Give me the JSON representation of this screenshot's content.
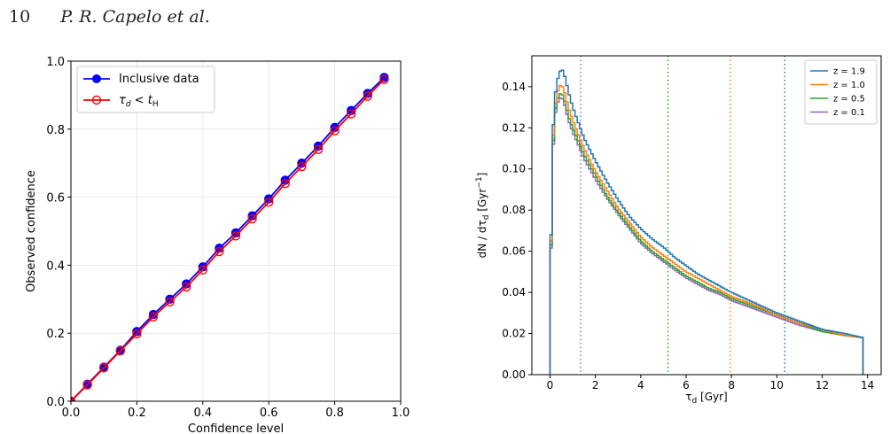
{
  "header": {
    "page_number": "10",
    "authors": "P. R. Capelo et al."
  },
  "chart_data": [
    {
      "type": "line",
      "xlabel": "Confidence level",
      "ylabel": "Observed confidence",
      "xlim": [
        0,
        1.0
      ],
      "ylim": [
        0,
        1.0
      ],
      "grid": true,
      "legend_placement": "top-left",
      "x_ticks": [
        "0.0",
        "0.2",
        "0.4",
        "0.6",
        "0.8",
        "1.0"
      ],
      "y_ticks": [
        "0.0",
        "0.2",
        "0.4",
        "0.6",
        "0.8",
        "1.0"
      ],
      "x": [
        0,
        0.05,
        0.1,
        0.15,
        0.2,
        0.25,
        0.3,
        0.35,
        0.4,
        0.45,
        0.5,
        0.55,
        0.6,
        0.65,
        0.7,
        0.75,
        0.8,
        0.85,
        0.9,
        0.95
      ],
      "series": [
        {
          "name": "Inclusive data",
          "color": "#0000ff",
          "marker": "filled-circle",
          "values": [
            0,
            0.05,
            0.1,
            0.15,
            0.205,
            0.255,
            0.3,
            0.345,
            0.395,
            0.45,
            0.495,
            0.545,
            0.595,
            0.65,
            0.7,
            0.75,
            0.805,
            0.855,
            0.905,
            0.952
          ]
        },
        {
          "name": "τd < tH",
          "name_parts": {
            "a": "τ",
            "a_sub": "d",
            "op": " < ",
            "b": "t",
            "b_sub": "H"
          },
          "color": "#ff0000",
          "marker": "open-circle",
          "values": [
            0,
            0.048,
            0.098,
            0.148,
            0.198,
            0.248,
            0.292,
            0.336,
            0.386,
            0.44,
            0.486,
            0.536,
            0.585,
            0.64,
            0.69,
            0.74,
            0.795,
            0.845,
            0.897,
            0.946
          ]
        }
      ]
    },
    {
      "type": "line",
      "xlabel": "τd [Gyr]",
      "xlabel_parts": {
        "sym": "τ",
        "sub": "d",
        "unit": " [Gyr]"
      },
      "ylabel": "dN / dτd [Gyr−1]",
      "ylabel_parts": {
        "pre": "dN / dτ",
        "sub": "d",
        "unit": " [Gyr",
        "sup": "−1",
        "close": "]"
      },
      "xlim": [
        -0.8,
        14.6
      ],
      "ylim": [
        0,
        0.155
      ],
      "grid": false,
      "legend_placement": "top-right",
      "x_ticks": [
        0,
        2,
        4,
        6,
        8,
        10,
        12,
        14
      ],
      "y_ticks": [
        "0.00",
        "0.02",
        "0.04",
        "0.06",
        "0.08",
        "0.10",
        "0.12",
        "0.14"
      ],
      "x": [
        0,
        0.1,
        0.2,
        0.3,
        0.4,
        0.5,
        0.6,
        0.7,
        0.8,
        1.0,
        1.2,
        1.5,
        2,
        2.5,
        3,
        3.5,
        4,
        4.5,
        5,
        5.5,
        6,
        6.5,
        7,
        7.5,
        8,
        9,
        10,
        11,
        12,
        13,
        13.8
      ],
      "series": [
        {
          "name": "z = 1.9",
          "color": "#1f77b4",
          "tau_H": 10.35,
          "values": [
            0.026,
            0.11,
            0.133,
            0.142,
            0.146,
            0.149,
            0.147,
            0.143,
            0.138,
            0.13,
            0.124,
            0.115,
            0.104,
            0.094,
            0.085,
            0.077,
            0.071,
            0.066,
            0.062,
            0.057,
            0.053,
            0.049,
            0.046,
            0.043,
            0.04,
            0.035,
            0.03,
            0.026,
            0.022,
            0.02,
            0.018
          ]
        },
        {
          "name": "z = 1.0",
          "color": "#ff7f0e",
          "tau_H": 7.95,
          "values": [
            0.025,
            0.105,
            0.128,
            0.136,
            0.14,
            0.141,
            0.139,
            0.135,
            0.13,
            0.124,
            0.118,
            0.11,
            0.099,
            0.09,
            0.081,
            0.074,
            0.067,
            0.062,
            0.058,
            0.054,
            0.05,
            0.047,
            0.044,
            0.041,
            0.038,
            0.034,
            0.029,
            0.025,
            0.022,
            0.019,
            0.018
          ]
        },
        {
          "name": "z = 0.5",
          "color": "#2ca02c",
          "tau_H": 5.2,
          "values": [
            0.024,
            0.102,
            0.126,
            0.133,
            0.136,
            0.137,
            0.135,
            0.131,
            0.126,
            0.12,
            0.115,
            0.107,
            0.097,
            0.087,
            0.079,
            0.072,
            0.065,
            0.06,
            0.056,
            0.052,
            0.048,
            0.045,
            0.042,
            0.04,
            0.037,
            0.033,
            0.029,
            0.025,
            0.021,
            0.019,
            0.018
          ]
        },
        {
          "name": "z = 0.1",
          "color": "#9467bd",
          "tau_H": 1.35,
          "values": [
            0.023,
            0.1,
            0.124,
            0.131,
            0.134,
            0.135,
            0.133,
            0.129,
            0.124,
            0.118,
            0.113,
            0.105,
            0.095,
            0.086,
            0.078,
            0.071,
            0.064,
            0.059,
            0.055,
            0.051,
            0.047,
            0.044,
            0.041,
            0.039,
            0.036,
            0.032,
            0.028,
            0.024,
            0.021,
            0.019,
            0.018
          ]
        }
      ]
    }
  ]
}
